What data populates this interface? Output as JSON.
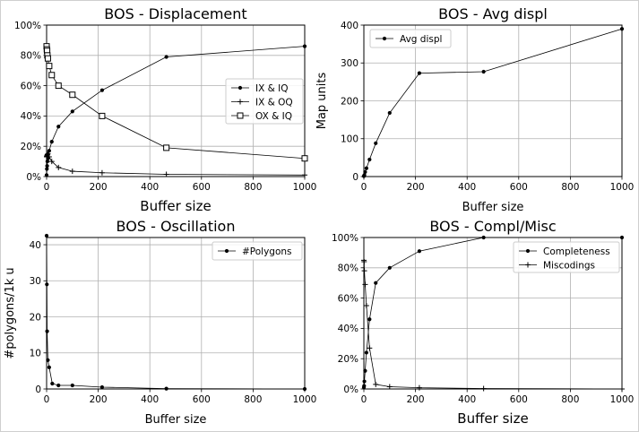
{
  "chart_data": [
    {
      "type": "line",
      "title": "BOS - Displacement",
      "xlabel": "Buffer size",
      "ylabel": "",
      "xlim": [
        0,
        1000
      ],
      "ylim": [
        0,
        100
      ],
      "x_ticks": [
        0,
        200,
        400,
        600,
        800,
        1000
      ],
      "y_ticks": [
        0,
        20,
        40,
        60,
        80,
        100
      ],
      "y_tick_labels": [
        "0%",
        "20%",
        "40%",
        "60%",
        "80%",
        "100%"
      ],
      "grid": true,
      "legend_position": "center-right",
      "series": [
        {
          "name": "IX & IQ",
          "marker": "dot",
          "x": [
            0,
            1,
            2,
            3,
            5,
            10,
            20,
            46,
            100,
            215,
            464,
            1000
          ],
          "y": [
            1,
            5,
            7,
            10,
            12,
            17,
            23,
            33,
            43,
            57,
            79,
            86
          ]
        },
        {
          "name": "IX & OQ",
          "marker": "plus",
          "x": [
            0,
            1,
            2,
            3,
            5,
            10,
            20,
            46,
            100,
            215,
            464,
            1000
          ],
          "y": [
            13,
            13.5,
            14,
            14.5,
            15,
            13,
            10,
            6,
            3.5,
            2.5,
            1.5,
            1
          ]
        },
        {
          "name": "OX & IQ",
          "marker": "square",
          "x": [
            0,
            1,
            2,
            3,
            5,
            10,
            20,
            46,
            100,
            215,
            464,
            1000
          ],
          "y": [
            86,
            84,
            83,
            80,
            78,
            73,
            67,
            60,
            54,
            40,
            19,
            12
          ]
        }
      ]
    },
    {
      "type": "line",
      "title": "BOS - Avg displ",
      "xlabel": "Buffer size",
      "ylabel": "Map units",
      "xlim": [
        0,
        1000
      ],
      "ylim": [
        0,
        400
      ],
      "x_ticks": [
        0,
        200,
        400,
        600,
        800,
        1000
      ],
      "y_ticks": [
        0,
        100,
        200,
        300,
        400
      ],
      "y_tick_labels": [
        "0",
        "100",
        "200",
        "300",
        "400"
      ],
      "grid": true,
      "legend_position": "top-left",
      "series": [
        {
          "name": "Avg displ",
          "marker": "dot",
          "x": [
            0,
            1,
            2,
            5,
            10,
            22,
            46,
            100,
            215,
            464,
            1000
          ],
          "y": [
            1,
            2,
            4,
            12,
            22,
            45,
            88,
            168,
            273,
            277,
            390
          ]
        }
      ]
    },
    {
      "type": "line",
      "title": "BOS - Oscillation",
      "xlabel": "Buffer size",
      "ylabel": "#polygons/1k u",
      "xlim": [
        0,
        1000
      ],
      "ylim": [
        0,
        42
      ],
      "x_ticks": [
        0,
        200,
        400,
        600,
        800,
        1000
      ],
      "y_ticks": [
        0,
        10,
        20,
        30,
        40
      ],
      "y_tick_labels": [
        "0",
        "10",
        "20",
        "30",
        "40"
      ],
      "grid": true,
      "legend_position": "top-right",
      "series": [
        {
          "name": "#Polygons",
          "marker": "dot",
          "x": [
            0,
            1,
            2,
            5,
            10,
            22,
            46,
            100,
            215,
            464,
            1000
          ],
          "y": [
            42.5,
            29,
            16,
            8,
            6,
            1.5,
            1,
            1,
            0.5,
            0.1,
            0
          ]
        }
      ]
    },
    {
      "type": "line",
      "title": "BOS - Compl/Misc",
      "xlabel": "Buffer size",
      "ylabel": "",
      "xlim": [
        0,
        1000
      ],
      "ylim": [
        0,
        100
      ],
      "x_ticks": [
        0,
        200,
        400,
        600,
        800,
        1000
      ],
      "y_ticks": [
        0,
        20,
        40,
        60,
        80,
        100
      ],
      "y_tick_labels": [
        "0%",
        "20%",
        "40%",
        "60%",
        "80%",
        "100%"
      ],
      "grid": true,
      "legend_position": "top-right",
      "series": [
        {
          "name": "Completeness",
          "marker": "dot",
          "x": [
            0,
            1,
            2,
            5,
            10,
            22,
            46,
            100,
            215,
            464,
            1000
          ],
          "y": [
            1,
            2,
            5,
            12,
            24,
            46,
            70,
            80,
            91,
            100,
            100
          ]
        },
        {
          "name": "Miscodings",
          "marker": "plus",
          "x": [
            0,
            1,
            2,
            5,
            10,
            22,
            46,
            100,
            215,
            464,
            1000
          ],
          "y": [
            85,
            84,
            78,
            69,
            55,
            27,
            3,
            1.5,
            0.8,
            0.3,
            0
          ]
        }
      ]
    }
  ]
}
